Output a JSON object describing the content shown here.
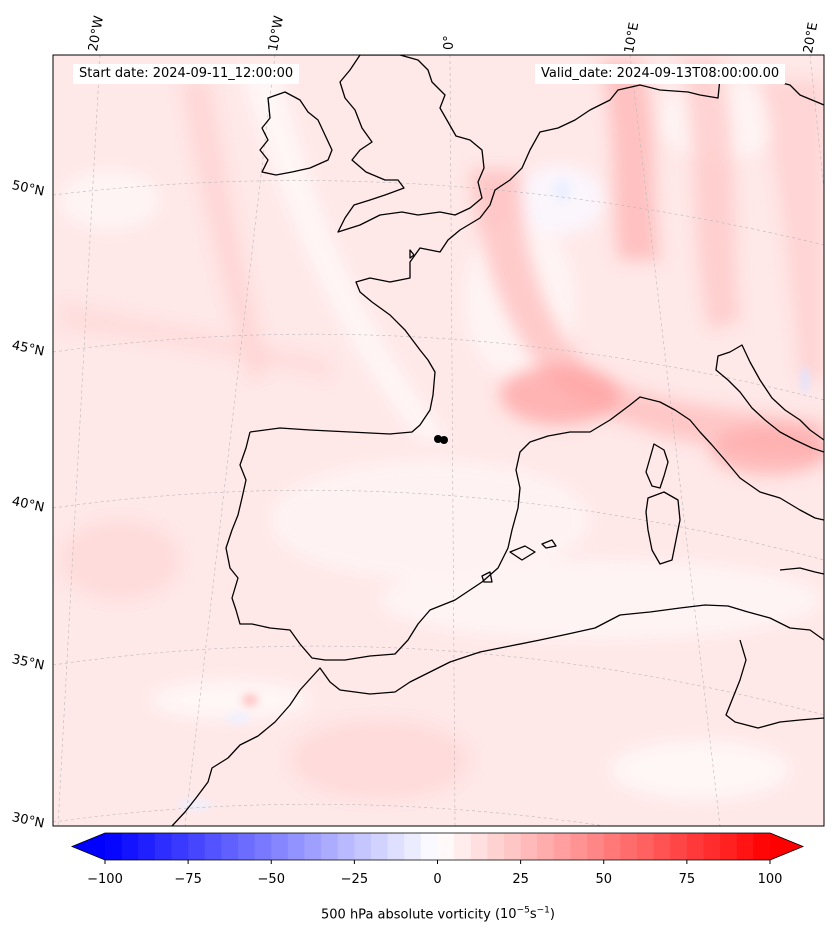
{
  "map": {
    "start_date": "Start date: 2024-09-11_12:00:00",
    "valid_date": "Valid_date: 2024-09-13T08:00:00.00",
    "lon_labels": [
      "20°W",
      "10°W",
      "0°",
      "10°E",
      "20°E"
    ],
    "lat_labels": [
      "50°N",
      "45°N",
      "40°N",
      "35°N",
      "30°N"
    ],
    "variable": "500 hPa absolute vorticity",
    "units_text": "(10",
    "units_exp1": "−5",
    "units_mid": "s",
    "units_exp2": "−1",
    "units_close": ")"
  },
  "colorbar": {
    "min": -100,
    "max": 100,
    "step": 5,
    "ticks": [
      "−100",
      "−75",
      "−50",
      "−25",
      "0",
      "25",
      "50",
      "75",
      "100"
    ],
    "neg_color": "#0000ff",
    "pos_color": "#ff0000"
  },
  "colors": {
    "ocean_land_base": "#ffe9e9",
    "coastline": "#000000"
  }
}
